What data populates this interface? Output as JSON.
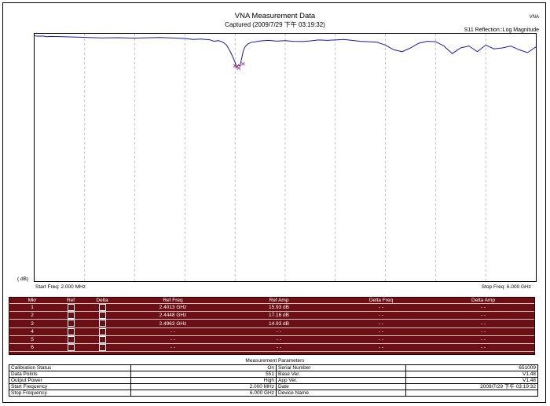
{
  "header": {
    "title": "VNA Measurement Data",
    "captured": "Captured  (2009/7/29 下午 03:19:32)",
    "tag": "VNA",
    "mode": "S11 Reflection::Log Magnitude"
  },
  "plot": {
    "y_unit": "( dB)",
    "start_freq": "Start Freq: 2.000 MHz",
    "stop_freq": "Stop Freq: 6.000 GHz",
    "trace_color": "#1a1aa0",
    "marker_color": "#c03080"
  },
  "chart_data": {
    "type": "line",
    "title": "VNA Measurement Data",
    "xlim": [
      0.002,
      6.0
    ],
    "grid": true,
    "series": [
      {
        "x": [
          0.002,
          0.05,
          0.1,
          0.15,
          0.2,
          0.3,
          0.5,
          0.8,
          1.0,
          1.2,
          1.5,
          1.7,
          1.8,
          1.9,
          2.0,
          2.1,
          2.15,
          2.2,
          2.25,
          2.3,
          2.35,
          2.4,
          2.42,
          2.44,
          2.46,
          2.48,
          2.5,
          2.52,
          2.55,
          2.6,
          2.65,
          2.7,
          2.8,
          2.9,
          3.0,
          3.1,
          3.2,
          3.3,
          3.4,
          3.5,
          3.6,
          3.7,
          3.8,
          3.9,
          4.0,
          4.1,
          4.2,
          4.3,
          4.4,
          4.5,
          4.6,
          4.7,
          4.8,
          4.9,
          5.0,
          5.1,
          5.2,
          5.3,
          5.4,
          5.5,
          5.6,
          5.7,
          5.8,
          5.9,
          6.0
        ],
        "y": [
          -0.1,
          -0.3,
          -0.2,
          -0.6,
          -0.4,
          -0.5,
          -0.8,
          -1.2,
          -1.1,
          -1.3,
          -1.0,
          -1.3,
          -1.5,
          -2.0,
          -1.8,
          -2.2,
          -3.0,
          -2.6,
          -3.3,
          -5.0,
          -9.0,
          -14.0,
          -17.0,
          -15.5,
          -16.0,
          -12.0,
          -8.0,
          -6.0,
          -4.5,
          -3.5,
          -3.2,
          -2.8,
          -2.5,
          -2.9,
          -2.6,
          -3.0,
          -3.1,
          -2.8,
          -2.3,
          -2.5,
          -2.3,
          -2.0,
          -2.5,
          -3.0,
          -3.2,
          -3.5,
          -5.0,
          -7.5,
          -8.5,
          -6.5,
          -4.0,
          -3.0,
          -3.2,
          -5.5,
          -9.5,
          -6.5,
          -5.5,
          -8.5,
          -5.0,
          -7.0,
          -6.5,
          -5.5,
          -7.5,
          -9.0,
          -6.0
        ]
      }
    ]
  },
  "markers": {
    "columns": [
      "Mkr",
      "Ref",
      "Delta",
      "Ref Freq",
      "Ref Amp",
      "Delta Freq",
      "Delta Amp"
    ],
    "rows": [
      {
        "mkr": "1",
        "freq": "2.4013 GHz",
        "amp": "15.93 dB",
        "dfreq": "- -",
        "damp": "- -"
      },
      {
        "mkr": "2",
        "freq": "2.4448 GHz",
        "amp": "17.16 dB",
        "dfreq": "- -",
        "damp": "- -"
      },
      {
        "mkr": "3",
        "freq": "2.4963 GHz",
        "amp": "14.93 dB",
        "dfreq": "- -",
        "damp": "- -"
      },
      {
        "mkr": "4",
        "freq": "- -",
        "amp": "- -",
        "dfreq": "- -",
        "damp": "- -"
      },
      {
        "mkr": "5",
        "freq": "- -",
        "amp": "- -",
        "dfreq": "- -",
        "damp": "- -"
      },
      {
        "mkr": "6",
        "freq": "- -",
        "amp": "- -",
        "dfreq": "- -",
        "damp": "- -"
      }
    ]
  },
  "params": {
    "title": "Measurement Parameters",
    "rows": [
      {
        "label": "Calibration Status",
        "value": "On",
        "label2": "Serial Number",
        "value2": "651009"
      },
      {
        "label": "Data Points",
        "value": "551",
        "label2": "Base Ver.",
        "value2": "V1.48"
      },
      {
        "label": "Output Power",
        "value": "High",
        "label2": "App Ver.",
        "value2": "V1.48"
      },
      {
        "label": "Start Frequency",
        "value": "2.000 MHz",
        "label2": "Date",
        "value2": "2009/7/29 下午 03:19:32"
      },
      {
        "label": "Stop Frequency",
        "value": "6.000 GHz",
        "label2": "Device Name",
        "value2": ""
      }
    ]
  }
}
